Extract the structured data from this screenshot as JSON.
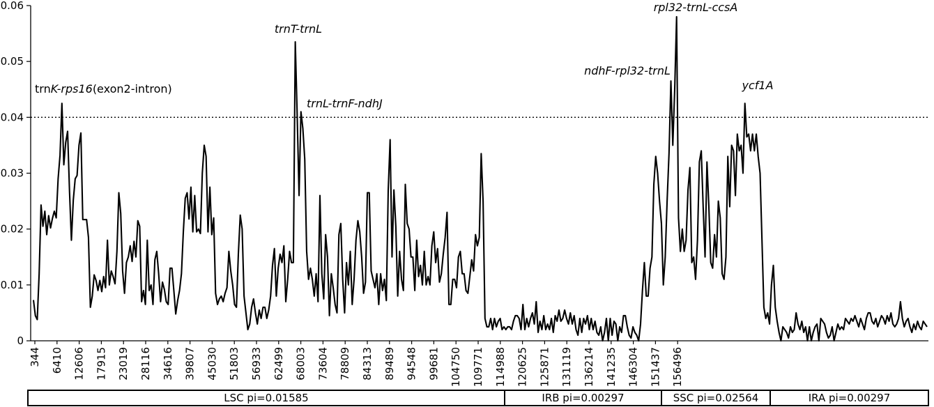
{
  "chart_data": {
    "type": "line",
    "title": "",
    "xlabel": "",
    "ylabel": "",
    "ylim": [
      0,
      0.06
    ],
    "y_ticks": [
      "0",
      "0.01",
      "0.02",
      "0.03",
      "0.04",
      "0.05",
      "0.06"
    ],
    "x_tick_labels": [
      "344",
      "6410",
      "12606",
      "17915",
      "23019",
      "28116",
      "34616",
      "39807",
      "45030",
      "51803",
      "56933",
      "62499",
      "68003",
      "73604",
      "78809",
      "84313",
      "89489",
      "94548",
      "99681",
      "104750",
      "109771",
      "114988",
      "120625",
      "125871",
      "131119",
      "136214",
      "141235",
      "146304",
      "151437",
      "156496"
    ],
    "threshold": 0.04,
    "grid": false,
    "legend": "none",
    "line_color": "#000000",
    "series": [
      {
        "values": [
          0.0073,
          0.0045,
          0.0038,
          0.012,
          0.0243,
          0.0205,
          0.0232,
          0.019,
          0.0224,
          0.0202,
          0.0219,
          0.0232,
          0.022,
          0.029,
          0.0332,
          0.0425,
          0.0315,
          0.0355,
          0.0375,
          0.0268,
          0.018,
          0.0252,
          0.029,
          0.0296,
          0.035,
          0.0372,
          0.0217,
          0.0217,
          0.0217,
          0.0185,
          0.006,
          0.008,
          0.0118,
          0.0108,
          0.009,
          0.0108,
          0.0088,
          0.0115,
          0.0095,
          0.018,
          0.01,
          0.0125,
          0.0115,
          0.0102,
          0.016,
          0.0265,
          0.0228,
          0.0125,
          0.0085,
          0.014,
          0.015,
          0.017,
          0.0142,
          0.0178,
          0.015,
          0.0215,
          0.0205,
          0.007,
          0.009,
          0.0065,
          0.018,
          0.009,
          0.01,
          0.0065,
          0.0145,
          0.016,
          0.012,
          0.007,
          0.0105,
          0.0092,
          0.007,
          0.0065,
          0.013,
          0.013,
          0.009,
          0.0048,
          0.0072,
          0.009,
          0.012,
          0.0195,
          0.0255,
          0.0265,
          0.0218,
          0.0275,
          0.0195,
          0.026,
          0.0195,
          0.02,
          0.0192,
          0.03,
          0.035,
          0.033,
          0.0195,
          0.0275,
          0.019,
          0.022,
          0.0085,
          0.0065,
          0.0075,
          0.008,
          0.007,
          0.0085,
          0.0095,
          0.016,
          0.0125,
          0.01,
          0.0065,
          0.006,
          0.0155,
          0.0225,
          0.02,
          0.008,
          0.005,
          0.002,
          0.003,
          0.006,
          0.0075,
          0.005,
          0.003,
          0.0055,
          0.004,
          0.006,
          0.006,
          0.004,
          0.0055,
          0.008,
          0.0135,
          0.0165,
          0.008,
          0.013,
          0.0155,
          0.014,
          0.017,
          0.007,
          0.011,
          0.016,
          0.014,
          0.014,
          0.0535,
          0.0405,
          0.026,
          0.041,
          0.038,
          0.0325,
          0.016,
          0.011,
          0.013,
          0.011,
          0.008,
          0.012,
          0.007,
          0.026,
          0.012,
          0.0075,
          0.019,
          0.015,
          0.0045,
          0.012,
          0.0095,
          0.0065,
          0.005,
          0.019,
          0.021,
          0.011,
          0.005,
          0.014,
          0.01,
          0.016,
          0.0065,
          0.011,
          0.018,
          0.0215,
          0.0195,
          0.015,
          0.0085,
          0.0105,
          0.0265,
          0.0265,
          0.0125,
          0.011,
          0.0095,
          0.012,
          0.0065,
          0.012,
          0.009,
          0.011,
          0.0072,
          0.027,
          0.036,
          0.015,
          0.027,
          0.0205,
          0.008,
          0.016,
          0.011,
          0.009,
          0.028,
          0.021,
          0.02,
          0.015,
          0.015,
          0.009,
          0.018,
          0.0115,
          0.0135,
          0.01,
          0.016,
          0.01,
          0.0115,
          0.01,
          0.017,
          0.0195,
          0.014,
          0.0165,
          0.0105,
          0.012,
          0.0155,
          0.0185,
          0.023,
          0.0065,
          0.0065,
          0.011,
          0.011,
          0.0095,
          0.015,
          0.016,
          0.012,
          0.012,
          0.009,
          0.0085,
          0.0115,
          0.0145,
          0.0125,
          0.019,
          0.017,
          0.0185,
          0.0335,
          0.025,
          0.004,
          0.0025,
          0.0025,
          0.004,
          0.002,
          0.004,
          0.0025,
          0.0035,
          0.004,
          0.002,
          0.0025,
          0.002,
          0.0025,
          0.0025,
          0.002,
          0.0035,
          0.0045,
          0.0045,
          0.004,
          0.002,
          0.0065,
          0.002,
          0.004,
          0.0025,
          0.004,
          0.005,
          0.003,
          0.007,
          0.0015,
          0.0035,
          0.002,
          0.0045,
          0.002,
          0.003,
          0.002,
          0.004,
          0.0015,
          0.0045,
          0.0035,
          0.0055,
          0.0035,
          0.004,
          0.0055,
          0.004,
          0.003,
          0.005,
          0.003,
          0.0045,
          0.002,
          0.001,
          0.004,
          0.0015,
          0.004,
          0.003,
          0.0045,
          0.002,
          0.004,
          0.002,
          0.0035,
          0.0015,
          0.001,
          0.0025,
          0.0,
          0.0015,
          0.004,
          0.0,
          0.004,
          0.001,
          0.0035,
          0.003,
          0.0,
          0.0025,
          0.0015,
          0.0045,
          0.0045,
          0.0025,
          0.001,
          0.0005,
          0.0025,
          0.0015,
          0.001,
          0.0,
          0.003,
          0.009,
          0.014,
          0.008,
          0.008,
          0.013,
          0.015,
          0.028,
          0.033,
          0.03,
          0.025,
          0.021,
          0.01,
          0.015,
          0.025,
          0.0335,
          0.0465,
          0.035,
          0.045,
          0.058,
          0.022,
          0.016,
          0.02,
          0.016,
          0.018,
          0.027,
          0.031,
          0.014,
          0.015,
          0.011,
          0.018,
          0.032,
          0.034,
          0.024,
          0.015,
          0.032,
          0.024,
          0.014,
          0.013,
          0.019,
          0.015,
          0.025,
          0.022,
          0.012,
          0.011,
          0.015,
          0.033,
          0.024,
          0.035,
          0.034,
          0.026,
          0.037,
          0.034,
          0.035,
          0.03,
          0.0425,
          0.0365,
          0.037,
          0.034,
          0.037,
          0.034,
          0.037,
          0.033,
          0.03,
          0.018,
          0.006,
          0.004,
          0.005,
          0.003,
          0.01,
          0.0135,
          0.006,
          0.0035,
          0.0015,
          0.0,
          0.0025,
          0.002,
          0.0015,
          0.0005,
          0.0025,
          0.0015,
          0.002,
          0.005,
          0.003,
          0.002,
          0.0035,
          0.0015,
          0.0025,
          0.0,
          0.0025,
          0.0,
          0.0015,
          0.0025,
          0.003,
          0.0,
          0.004,
          0.0035,
          0.003,
          0.0015,
          0.0005,
          0.001,
          0.0025,
          0.0,
          0.0015,
          0.003,
          0.002,
          0.0025,
          0.002,
          0.004,
          0.0035,
          0.003,
          0.004,
          0.0035,
          0.0045,
          0.0035,
          0.0025,
          0.004,
          0.003,
          0.002,
          0.004,
          0.005,
          0.005,
          0.0035,
          0.003,
          0.004,
          0.0025,
          0.0035,
          0.0045,
          0.004,
          0.003,
          0.0045,
          0.0035,
          0.005,
          0.003,
          0.0025,
          0.003,
          0.004,
          0.007,
          0.004,
          0.0025,
          0.0035,
          0.004,
          0.0025,
          0.0015,
          0.003,
          0.002,
          0.0035,
          0.0025,
          0.002,
          0.0035,
          0.003,
          0.0025
        ]
      }
    ],
    "annotations": [
      {
        "parts": [
          {
            "text": "trn",
            "italic": false
          },
          {
            "text": "K-rps16",
            "italic": true
          },
          {
            "text": "(exon2-intron)",
            "italic": false
          }
        ]
      },
      {
        "parts": [
          {
            "text": "trnT-trnL",
            "italic": true
          }
        ]
      },
      {
        "parts": [
          {
            "text": "trnL-trnF-ndhJ",
            "italic": true
          }
        ]
      },
      {
        "parts": [
          {
            "text": "ndhF-rpl32-trnL",
            "italic": true
          }
        ]
      },
      {
        "parts": [
          {
            "text": "rpl32-trnL-ccsA",
            "italic": true
          }
        ]
      },
      {
        "parts": [
          {
            "text": "ycf1A",
            "italic": true
          }
        ]
      }
    ],
    "regions": [
      {
        "label": "LSC pi=0.01585"
      },
      {
        "label": "IRB pi=0.00297"
      },
      {
        "label": "SSC pi=0.02564"
      },
      {
        "label": "IRA pi=0.00297"
      }
    ]
  }
}
